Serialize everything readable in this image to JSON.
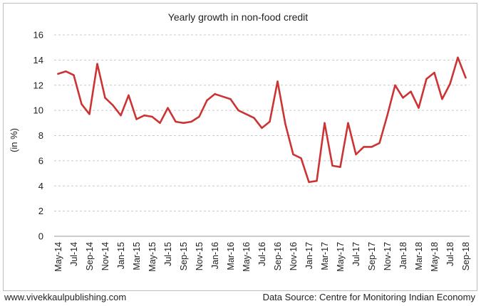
{
  "chart_data": {
    "type": "line",
    "title": "Yearly growth in non-food credit",
    "ylabel": "(in %)",
    "xlabel": "",
    "ylim": [
      0,
      16
    ],
    "yticks": [
      0,
      2,
      4,
      6,
      8,
      10,
      12,
      14,
      16
    ],
    "grid": "horizontal dashed",
    "line_color": "#cc3333",
    "x": [
      "May-14",
      "Jun-14",
      "Jul-14",
      "Aug-14",
      "Sep-14",
      "Oct-14",
      "Nov-14",
      "Dec-14",
      "Jan-15",
      "Feb-15",
      "Mar-15",
      "Apr-15",
      "May-15",
      "Jun-15",
      "Jul-15",
      "Aug-15",
      "Sep-15",
      "Oct-15",
      "Nov-15",
      "Dec-15",
      "Jan-16",
      "Feb-16",
      "Mar-16",
      "Apr-16",
      "May-16",
      "Jun-16",
      "Jul-16",
      "Aug-16",
      "Sep-16",
      "Oct-16",
      "Nov-16",
      "Dec-16",
      "Jan-17",
      "Feb-17",
      "Mar-17",
      "Apr-17",
      "May-17",
      "Jun-17",
      "Jul-17",
      "Aug-17",
      "Sep-17",
      "Oct-17",
      "Nov-17",
      "Dec-17",
      "Jan-18",
      "Feb-18",
      "Mar-18",
      "Apr-18",
      "May-18",
      "Jun-18",
      "Jul-18",
      "Aug-18",
      "Sep-18"
    ],
    "xtick_labels": [
      "May-14",
      "Jul-14",
      "Sep-14",
      "Nov-14",
      "Jan-15",
      "Mar-15",
      "May-15",
      "Jul-15",
      "Sep-15",
      "Nov-15",
      "Jan-16",
      "Mar-16",
      "May-16",
      "Jul-16",
      "Sep-16",
      "Nov-16",
      "Jan-17",
      "Mar-17",
      "May-17",
      "Jul-17",
      "Sep-17",
      "Nov-17",
      "Jan-18",
      "Mar-18",
      "May-18",
      "Jul-18",
      "Sep-18"
    ],
    "series": [
      {
        "values": [
          12.9,
          13.1,
          12.8,
          10.5,
          9.7,
          13.7,
          11.0,
          10.4,
          9.6,
          11.2,
          9.3,
          9.6,
          9.5,
          9.0,
          10.2,
          9.1,
          9.0,
          9.1,
          9.5,
          10.8,
          11.3,
          11.1,
          10.9,
          10.0,
          9.7,
          9.4,
          8.6,
          9.1,
          12.3,
          8.9,
          6.5,
          6.2,
          4.3,
          4.4,
          9.0,
          5.6,
          5.5,
          9.0,
          6.5,
          7.1,
          7.1,
          7.4,
          9.6,
          12.0,
          11.0,
          11.5,
          10.2,
          12.5,
          13.0,
          10.9,
          12.1,
          14.2,
          12.6
        ]
      }
    ]
  },
  "footer": {
    "source_left": "www.vivekkaulpublishing.com",
    "source_right": "Data Source: Centre for Monitoring Indian Economy"
  }
}
